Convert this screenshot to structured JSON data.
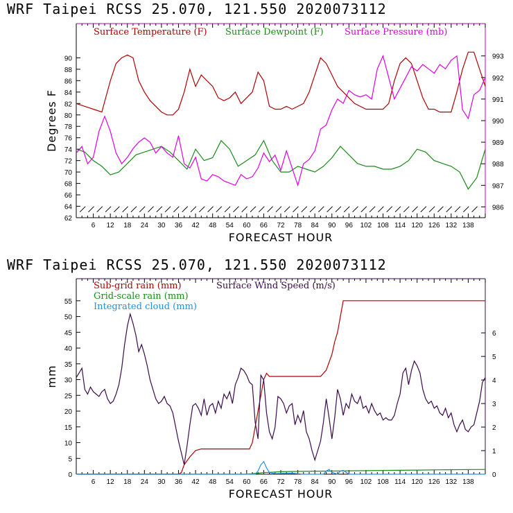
{
  "chart_data": [
    {
      "type": "line",
      "title": "WRF   Taipei RCSS   25.070, 121.550  2020073112",
      "xlabel": "FORECAST HOUR",
      "ylabel": "Degrees F",
      "xlim": [
        0,
        144
      ],
      "ylim": [
        62,
        96
      ],
      "y2lim": [
        985.5,
        994.5
      ],
      "x_ticks": [
        6,
        12,
        18,
        24,
        30,
        36,
        42,
        48,
        54,
        60,
        66,
        72,
        78,
        84,
        90,
        96,
        102,
        108,
        114,
        120,
        126,
        132,
        138
      ],
      "y_ticks": [
        62,
        64,
        66,
        68,
        70,
        72,
        74,
        76,
        78,
        80,
        82,
        84,
        86,
        88,
        90
      ],
      "y2_ticks": [
        986,
        987,
        988,
        989,
        990,
        991,
        992,
        993
      ],
      "series": [
        {
          "name": "Surface Temperature (F)",
          "color": "#b00000",
          "axis": "left",
          "x": [
            0,
            3,
            6,
            9,
            12,
            14,
            16,
            18,
            20,
            22,
            24,
            26,
            28,
            30,
            32,
            34,
            36,
            38,
            40,
            42,
            44,
            46,
            48,
            50,
            52,
            54,
            56,
            58,
            60,
            62,
            64,
            66,
            68,
            70,
            72,
            74,
            76,
            78,
            80,
            82,
            84,
            86,
            88,
            90,
            92,
            94,
            96,
            98,
            100,
            102,
            104,
            106,
            108,
            110,
            112,
            114,
            116,
            118,
            120,
            122,
            124,
            126,
            128,
            130,
            132,
            134,
            136,
            138,
            140,
            142,
            144
          ],
          "y": [
            82,
            81.5,
            81,
            80.5,
            86,
            89,
            90,
            90.5,
            90,
            86,
            84,
            82.5,
            81.5,
            80.5,
            80,
            80,
            81,
            84,
            88,
            85,
            87,
            86,
            85,
            83,
            82.5,
            83,
            84,
            82,
            83,
            84,
            87.5,
            86,
            81.5,
            81,
            81,
            81.5,
            81,
            81.5,
            82,
            84,
            87,
            90,
            89,
            87,
            85,
            84,
            83,
            82,
            81.5,
            81,
            81,
            81,
            81,
            82,
            86,
            89,
            90,
            89,
            86,
            83,
            81,
            81,
            80.5,
            80.5,
            80.5,
            84,
            88,
            91,
            91,
            88,
            85
          ]
        },
        {
          "name": "Surface Dewpoint (F)",
          "color": "#1a8a1a",
          "axis": "left",
          "x": [
            0,
            3,
            6,
            9,
            12,
            15,
            18,
            21,
            24,
            27,
            30,
            33,
            36,
            39,
            42,
            45,
            48,
            51,
            54,
            57,
            60,
            63,
            66,
            69,
            72,
            75,
            78,
            81,
            84,
            87,
            90,
            93,
            96,
            99,
            102,
            105,
            108,
            111,
            114,
            117,
            120,
            123,
            126,
            129,
            132,
            135,
            138,
            141,
            144
          ],
          "y": [
            74,
            73.5,
            72,
            71,
            69.5,
            70,
            71.5,
            73,
            73.5,
            74,
            74.5,
            73.5,
            72,
            70.5,
            74,
            72,
            72.5,
            75.5,
            74,
            71,
            72,
            73,
            75.5,
            72,
            70,
            70,
            71,
            70.5,
            70,
            71,
            72.5,
            74.5,
            73,
            71.5,
            71,
            71,
            70.5,
            70.5,
            71,
            72,
            74,
            73.5,
            72,
            71.5,
            71,
            70,
            67,
            69,
            74
          ]
        },
        {
          "name": "Surface Pressure (mb)",
          "color": "#e000e0",
          "axis": "right",
          "x": [
            0,
            2,
            4,
            6,
            8,
            10,
            12,
            14,
            16,
            18,
            20,
            22,
            24,
            26,
            28,
            30,
            32,
            34,
            36,
            38,
            40,
            42,
            44,
            46,
            48,
            50,
            52,
            54,
            56,
            58,
            60,
            62,
            64,
            66,
            68,
            70,
            72,
            74,
            76,
            78,
            80,
            82,
            84,
            86,
            88,
            90,
            92,
            94,
            96,
            98,
            100,
            102,
            104,
            106,
            108,
            110,
            112,
            114,
            116,
            118,
            120,
            122,
            124,
            126,
            128,
            130,
            132,
            134,
            136,
            138,
            140,
            142,
            144
          ],
          "y": [
            988.5,
            988.8,
            988,
            988.3,
            989.5,
            990.2,
            989.5,
            988.5,
            988,
            988.3,
            988.7,
            989,
            989.2,
            989,
            988.5,
            988.8,
            988.5,
            988.3,
            989.3,
            988,
            987.8,
            988.3,
            987.3,
            987.2,
            987.5,
            987.4,
            987.2,
            987.1,
            987,
            987.5,
            987.3,
            987.4,
            987.8,
            988.5,
            988.1,
            988.4,
            987.7,
            988.6,
            987.8,
            987,
            988,
            988.2,
            988.6,
            989.6,
            989.8,
            990.5,
            991,
            990.8,
            991.4,
            991.2,
            991.1,
            991.2,
            991,
            992.4,
            993,
            992,
            991,
            991.5,
            992,
            992.5,
            992.3,
            992.6,
            992.4,
            992.2,
            992.6,
            992.4,
            992.8,
            993,
            990.5,
            990.1,
            991.2,
            991.4,
            992
          ]
        }
      ],
      "wind_barbs": "present",
      "legend": "top"
    },
    {
      "type": "line",
      "title": "WRF   Taipei RCSS   25.070, 121.550  2020073112",
      "xlabel": "FORECAST HOUR",
      "ylabel": "mm",
      "xlim": [
        0,
        144
      ],
      "ylim": [
        0,
        62
      ],
      "y2lim": [
        0,
        8.3
      ],
      "x_ticks": [
        6,
        12,
        18,
        24,
        30,
        36,
        42,
        48,
        54,
        60,
        66,
        72,
        78,
        84,
        90,
        96,
        102,
        108,
        114,
        120,
        126,
        132,
        138
      ],
      "y_ticks": [
        0,
        5,
        10,
        15,
        20,
        25,
        30,
        35,
        40,
        45,
        50,
        55
      ],
      "y2_ticks": [
        0,
        1,
        2,
        3,
        4,
        5,
        6
      ],
      "series": [
        {
          "name": "Sub-grid rain (mm)",
          "color": "#b00000",
          "axis": "left",
          "x": [
            0,
            36,
            37,
            38,
            40,
            42,
            44,
            61,
            62,
            63,
            64,
            65,
            66,
            67,
            68,
            80,
            84,
            86,
            88,
            90,
            91,
            92,
            93,
            94,
            95,
            144
          ],
          "y": [
            0,
            0,
            0.5,
            3,
            5.5,
            7.5,
            8,
            8,
            10,
            15,
            20,
            25,
            30,
            32,
            31,
            31,
            31,
            31,
            33,
            38,
            42,
            45,
            50,
            55,
            55,
            55
          ]
        },
        {
          "name": "Grid-scale rain (mm)",
          "color": "#1a8a1a",
          "axis": "left",
          "x": [
            0,
            40,
            60,
            64,
            66,
            68,
            72,
            80,
            90,
            100,
            110,
            120,
            130,
            144
          ],
          "y": [
            0,
            0,
            0,
            0.3,
            0.5,
            0.6,
            0.8,
            0.9,
            1,
            1.1,
            1.2,
            1.3,
            1.4,
            1.5
          ]
        },
        {
          "name": "Integrated cloud (mm)",
          "color": "#2090e0",
          "axis": "left",
          "x": [
            0,
            40,
            63,
            64,
            65,
            66,
            67,
            68,
            70,
            76,
            80,
            87,
            88,
            89,
            90,
            92,
            93,
            94,
            96,
            100,
            120,
            144
          ],
          "y": [
            0,
            0,
            0,
            1,
            3,
            4,
            2,
            0.5,
            0.2,
            0.3,
            0,
            0,
            1,
            1.5,
            0.6,
            0,
            1,
            1.2,
            0,
            0,
            0,
            0
          ]
        },
        {
          "name": "Surface Wind Speed (m/s)",
          "color": "#3a0a4a",
          "axis": "right",
          "x": [
            0,
            1,
            2,
            3,
            4,
            5,
            6,
            7,
            8,
            9,
            10,
            11,
            12,
            13,
            14,
            15,
            16,
            17,
            18,
            19,
            20,
            21,
            22,
            23,
            24,
            25,
            26,
            27,
            28,
            29,
            30,
            31,
            32,
            33,
            34,
            35,
            36,
            37,
            38,
            39,
            40,
            41,
            42,
            43,
            44,
            45,
            46,
            47,
            48,
            49,
            50,
            51,
            52,
            53,
            54,
            55,
            56,
            57,
            58,
            59,
            60,
            61,
            62,
            63,
            64,
            65,
            66,
            67,
            68,
            69,
            70,
            71,
            72,
            73,
            74,
            75,
            76,
            77,
            78,
            79,
            80,
            81,
            82,
            83,
            84,
            85,
            86,
            87,
            88,
            89,
            90,
            91,
            92,
            93,
            94,
            95,
            96,
            97,
            98,
            99,
            100,
            101,
            102,
            103,
            104,
            105,
            106,
            107,
            108,
            109,
            110,
            111,
            112,
            113,
            114,
            115,
            116,
            117,
            118,
            119,
            120,
            121,
            122,
            123,
            124,
            125,
            126,
            127,
            128,
            129,
            130,
            131,
            132,
            133,
            134,
            135,
            136,
            137,
            138,
            139,
            140,
            141,
            142,
            143,
            144
          ],
          "y": [
            4.1,
            4.3,
            4.5,
            3.6,
            3.4,
            3.7,
            3.5,
            3.4,
            3.3,
            3.5,
            3.6,
            3.2,
            3.0,
            3.1,
            3.4,
            3.8,
            4.5,
            5.5,
            6.3,
            6.8,
            6.4,
            5.9,
            5.2,
            5.5,
            5.1,
            4.6,
            4.0,
            3.6,
            3.2,
            3.0,
            3.1,
            3.3,
            3.0,
            2.9,
            2.6,
            2.0,
            1.4,
            0.9,
            0.4,
            1.2,
            2.1,
            2.9,
            3.0,
            2.8,
            2.5,
            3.2,
            2.5,
            2.9,
            3.0,
            2.6,
            3.1,
            2.8,
            3.4,
            3.2,
            3.5,
            3.0,
            3.8,
            4.1,
            4.5,
            4.4,
            4.2,
            3.9,
            3.8,
            2.2,
            1.5,
            4.2,
            4.0,
            2.6,
            1.8,
            1.5,
            2.0,
            3.3,
            3.2,
            3.0,
            2.6,
            2.9,
            3.0,
            2.1,
            2.5,
            2.2,
            2.7,
            1.8,
            1.5,
            1.0,
            0.6,
            1.0,
            1.4,
            2.2,
            3.2,
            2.4,
            1.5,
            2.4,
            3.6,
            3.2,
            2.5,
            3.0,
            2.8,
            3.4,
            3.1,
            3.0,
            3.3,
            2.8,
            2.9,
            2.6,
            3.0,
            2.7,
            2.5,
            2.6,
            2.3,
            2.4,
            2.3,
            2.3,
            2.5,
            3.0,
            3.4,
            4.3,
            4.5,
            3.8,
            4.4,
            4.8,
            4.6,
            4.3,
            3.6,
            3.2,
            3.0,
            3.1,
            2.8,
            2.9,
            2.6,
            2.5,
            2.8,
            2.4,
            2.6,
            2.1,
            1.8,
            2.1,
            2.3,
            1.9,
            1.8,
            2.0,
            2.1,
            2.6,
            3.1,
            3.9,
            4.1
          ]
        }
      ],
      "legend": "top"
    }
  ]
}
